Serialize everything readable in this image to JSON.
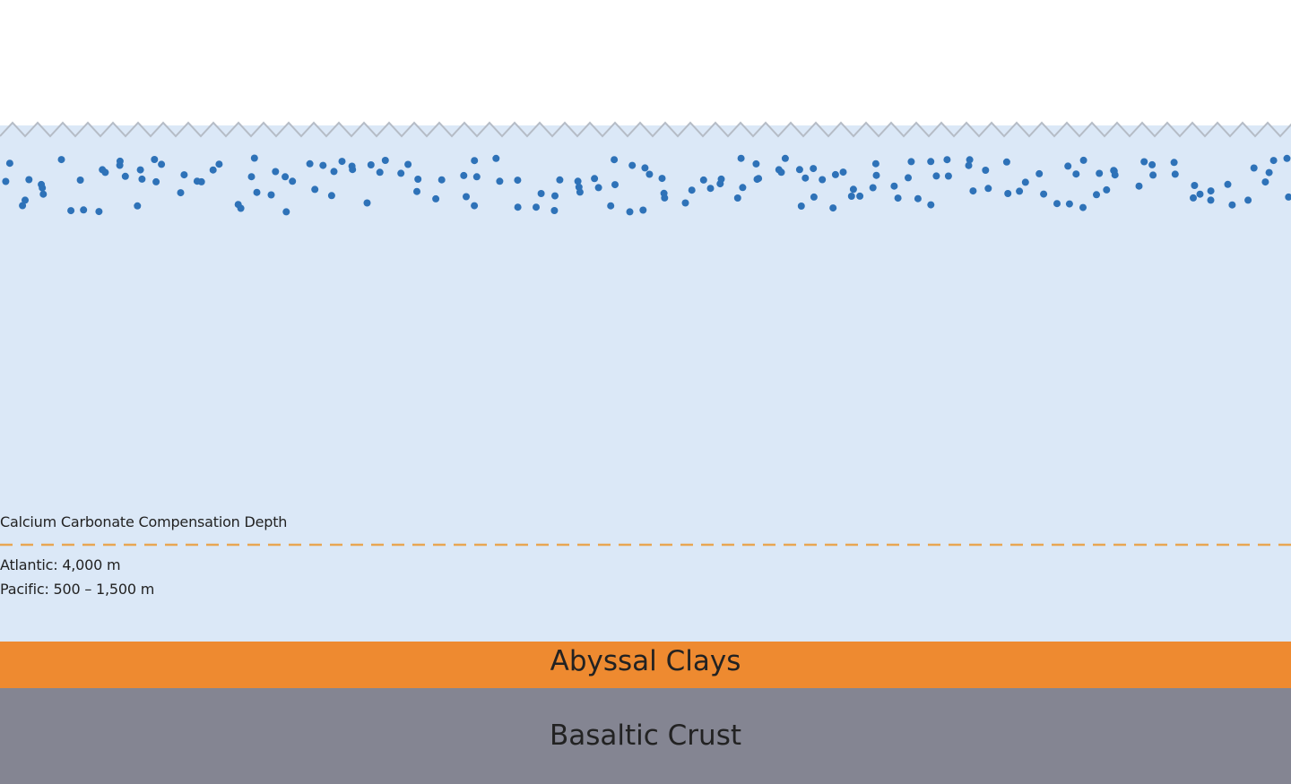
{
  "colors": {
    "sky": "#ffffff",
    "water": "#dbe8f7",
    "surface_line": "#b5bcc6",
    "plankton": "#2e72b8",
    "ccd_line": "#e8a653",
    "abyssal_clay": "#ee8a30",
    "basaltic_crust": "#848592"
  },
  "ccd": {
    "title": "Calcium Carbonate Compensation Depth",
    "atlantic": "Atlantic:  4,000 m",
    "pacific": "Pacific:  500 – 1,500 m"
  },
  "layers": {
    "abyssal_clay": "Abyssal Clays",
    "basaltic_crust": "Basaltic Crust"
  }
}
